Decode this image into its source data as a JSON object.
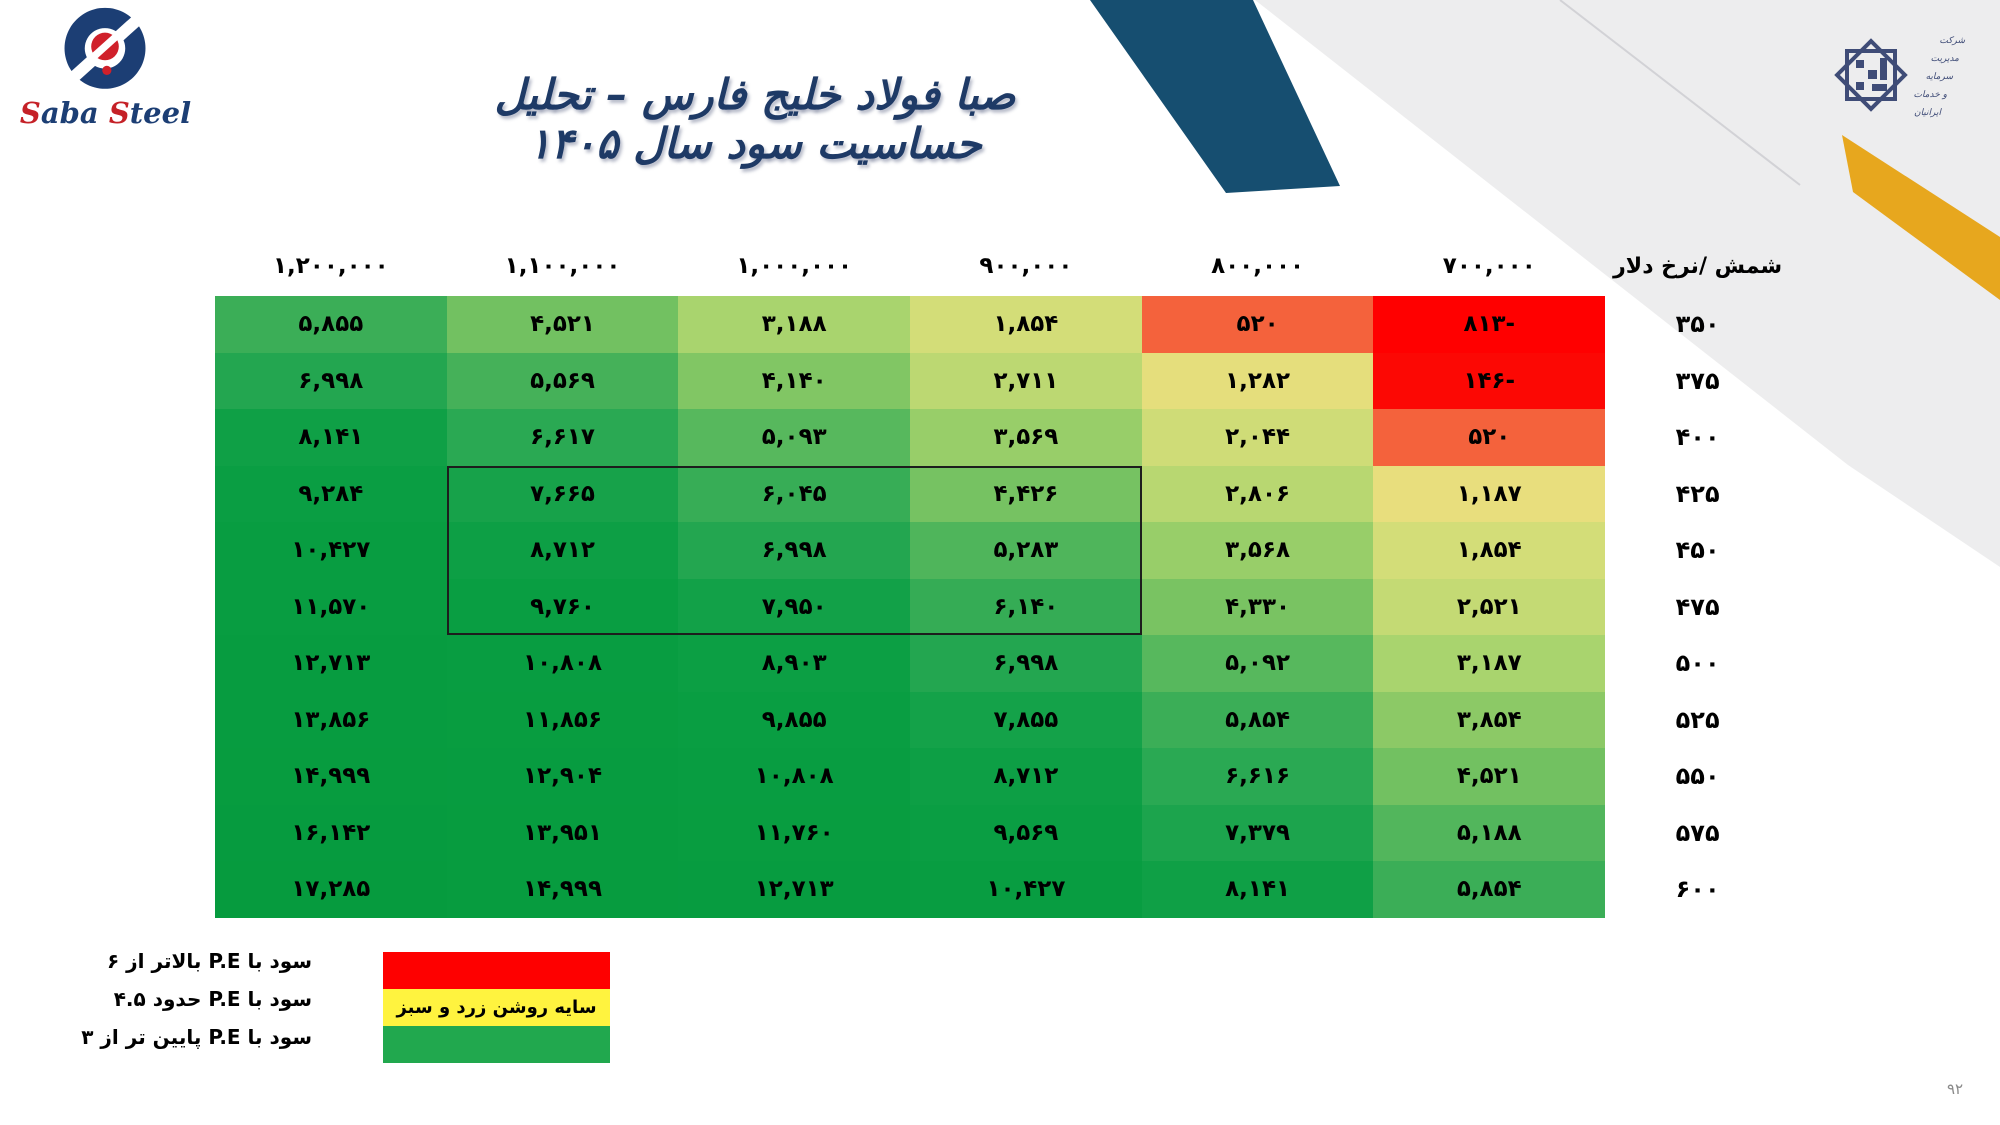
{
  "title": "صبا فولاد خلیج فارس – تحلیل حساسیت سود سال ۱۴۰۵",
  "brand": {
    "name_parts": {
      "s1": "S",
      "rest1": "aba ",
      "s2": "S",
      "rest2": "teel"
    },
    "blue": "#1c3e74",
    "red": "#c52127"
  },
  "emblem": {
    "lines": [
      "شرکت",
      "مدیریت",
      "سرمایه",
      "و خدمات",
      "ایرانیان"
    ],
    "color": "#3f4c77"
  },
  "chart_data": {
    "type": "heatmap",
    "title": "صبا فولاد خلیج فارس – تحلیل حساسیت سود سال ۱۴۰۵",
    "corner_label": "شمش /نرخ دلار",
    "columns": [
      1200000,
      1100000,
      1000000,
      900000,
      800000,
      700000
    ],
    "rows": [
      350,
      375,
      400,
      425,
      450,
      475,
      500,
      525,
      550,
      575,
      600
    ],
    "values": [
      [
        5855,
        4521,
        3188,
        1854,
        520,
        -813
      ],
      [
        6998,
        5569,
        4140,
        2711,
        1282,
        -146
      ],
      [
        8141,
        6617,
        5093,
        3569,
        2044,
        520
      ],
      [
        9284,
        7665,
        6045,
        4426,
        2806,
        1187
      ],
      [
        10427,
        8712,
        6998,
        5283,
        3568,
        1854
      ],
      [
        11570,
        9760,
        7950,
        6140,
        4330,
        2521
      ],
      [
        12713,
        10808,
        8903,
        6998,
        5092,
        3187
      ],
      [
        13856,
        11856,
        9855,
        7855,
        5854,
        3854
      ],
      [
        14999,
        12904,
        10808,
        8712,
        6616,
        4521
      ],
      [
        16142,
        13951,
        11760,
        9569,
        7379,
        5188
      ],
      [
        17285,
        14999,
        12713,
        10427,
        8141,
        5854
      ]
    ],
    "highlight_box": {
      "row_values": [
        425,
        450,
        475
      ],
      "column_values": [
        1100000,
        1000000,
        900000
      ]
    },
    "colorscale": [
      [
        -813,
        255,
        0,
        0
      ],
      [
        -146,
        252,
        8,
        4
      ],
      [
        520,
        244,
        98,
        60
      ],
      [
        1187,
        232,
        222,
        125
      ],
      [
        1854,
        211,
        221,
        120
      ],
      [
        2521,
        196,
        218,
        116
      ],
      [
        3187,
        169,
        212,
        110
      ],
      [
        3854,
        140,
        201,
        102
      ],
      [
        4521,
        114,
        193,
        97
      ],
      [
        5188,
        82,
        182,
        92
      ],
      [
        5854,
        59,
        174,
        87
      ],
      [
        6616,
        42,
        169,
        83
      ],
      [
        7379,
        28,
        164,
        77
      ],
      [
        8141,
        15,
        160,
        70
      ],
      [
        9284,
        10,
        158,
        67
      ],
      [
        10427,
        8,
        157,
        65
      ],
      [
        17285,
        6,
        155,
        62
      ]
    ]
  },
  "legend": {
    "lines": [
      "سود با P.E بالاتر از ۶",
      "سود با P.E حدود ۴.۵",
      "سود با P.E پایین تر از ۳"
    ],
    "stripes": [
      {
        "color": "#fe0000",
        "label": ""
      },
      {
        "color": "#fff33f",
        "label": "سایه روشن زرد و سبز"
      },
      {
        "color": "#21a84e",
        "label": ""
      }
    ]
  },
  "decor": {
    "gray_band": "#ededee",
    "gray_line": "#d2d2d6",
    "blue_band": "#164e70",
    "gold_band": "#e7a71e"
  },
  "page_number": "۹۲"
}
